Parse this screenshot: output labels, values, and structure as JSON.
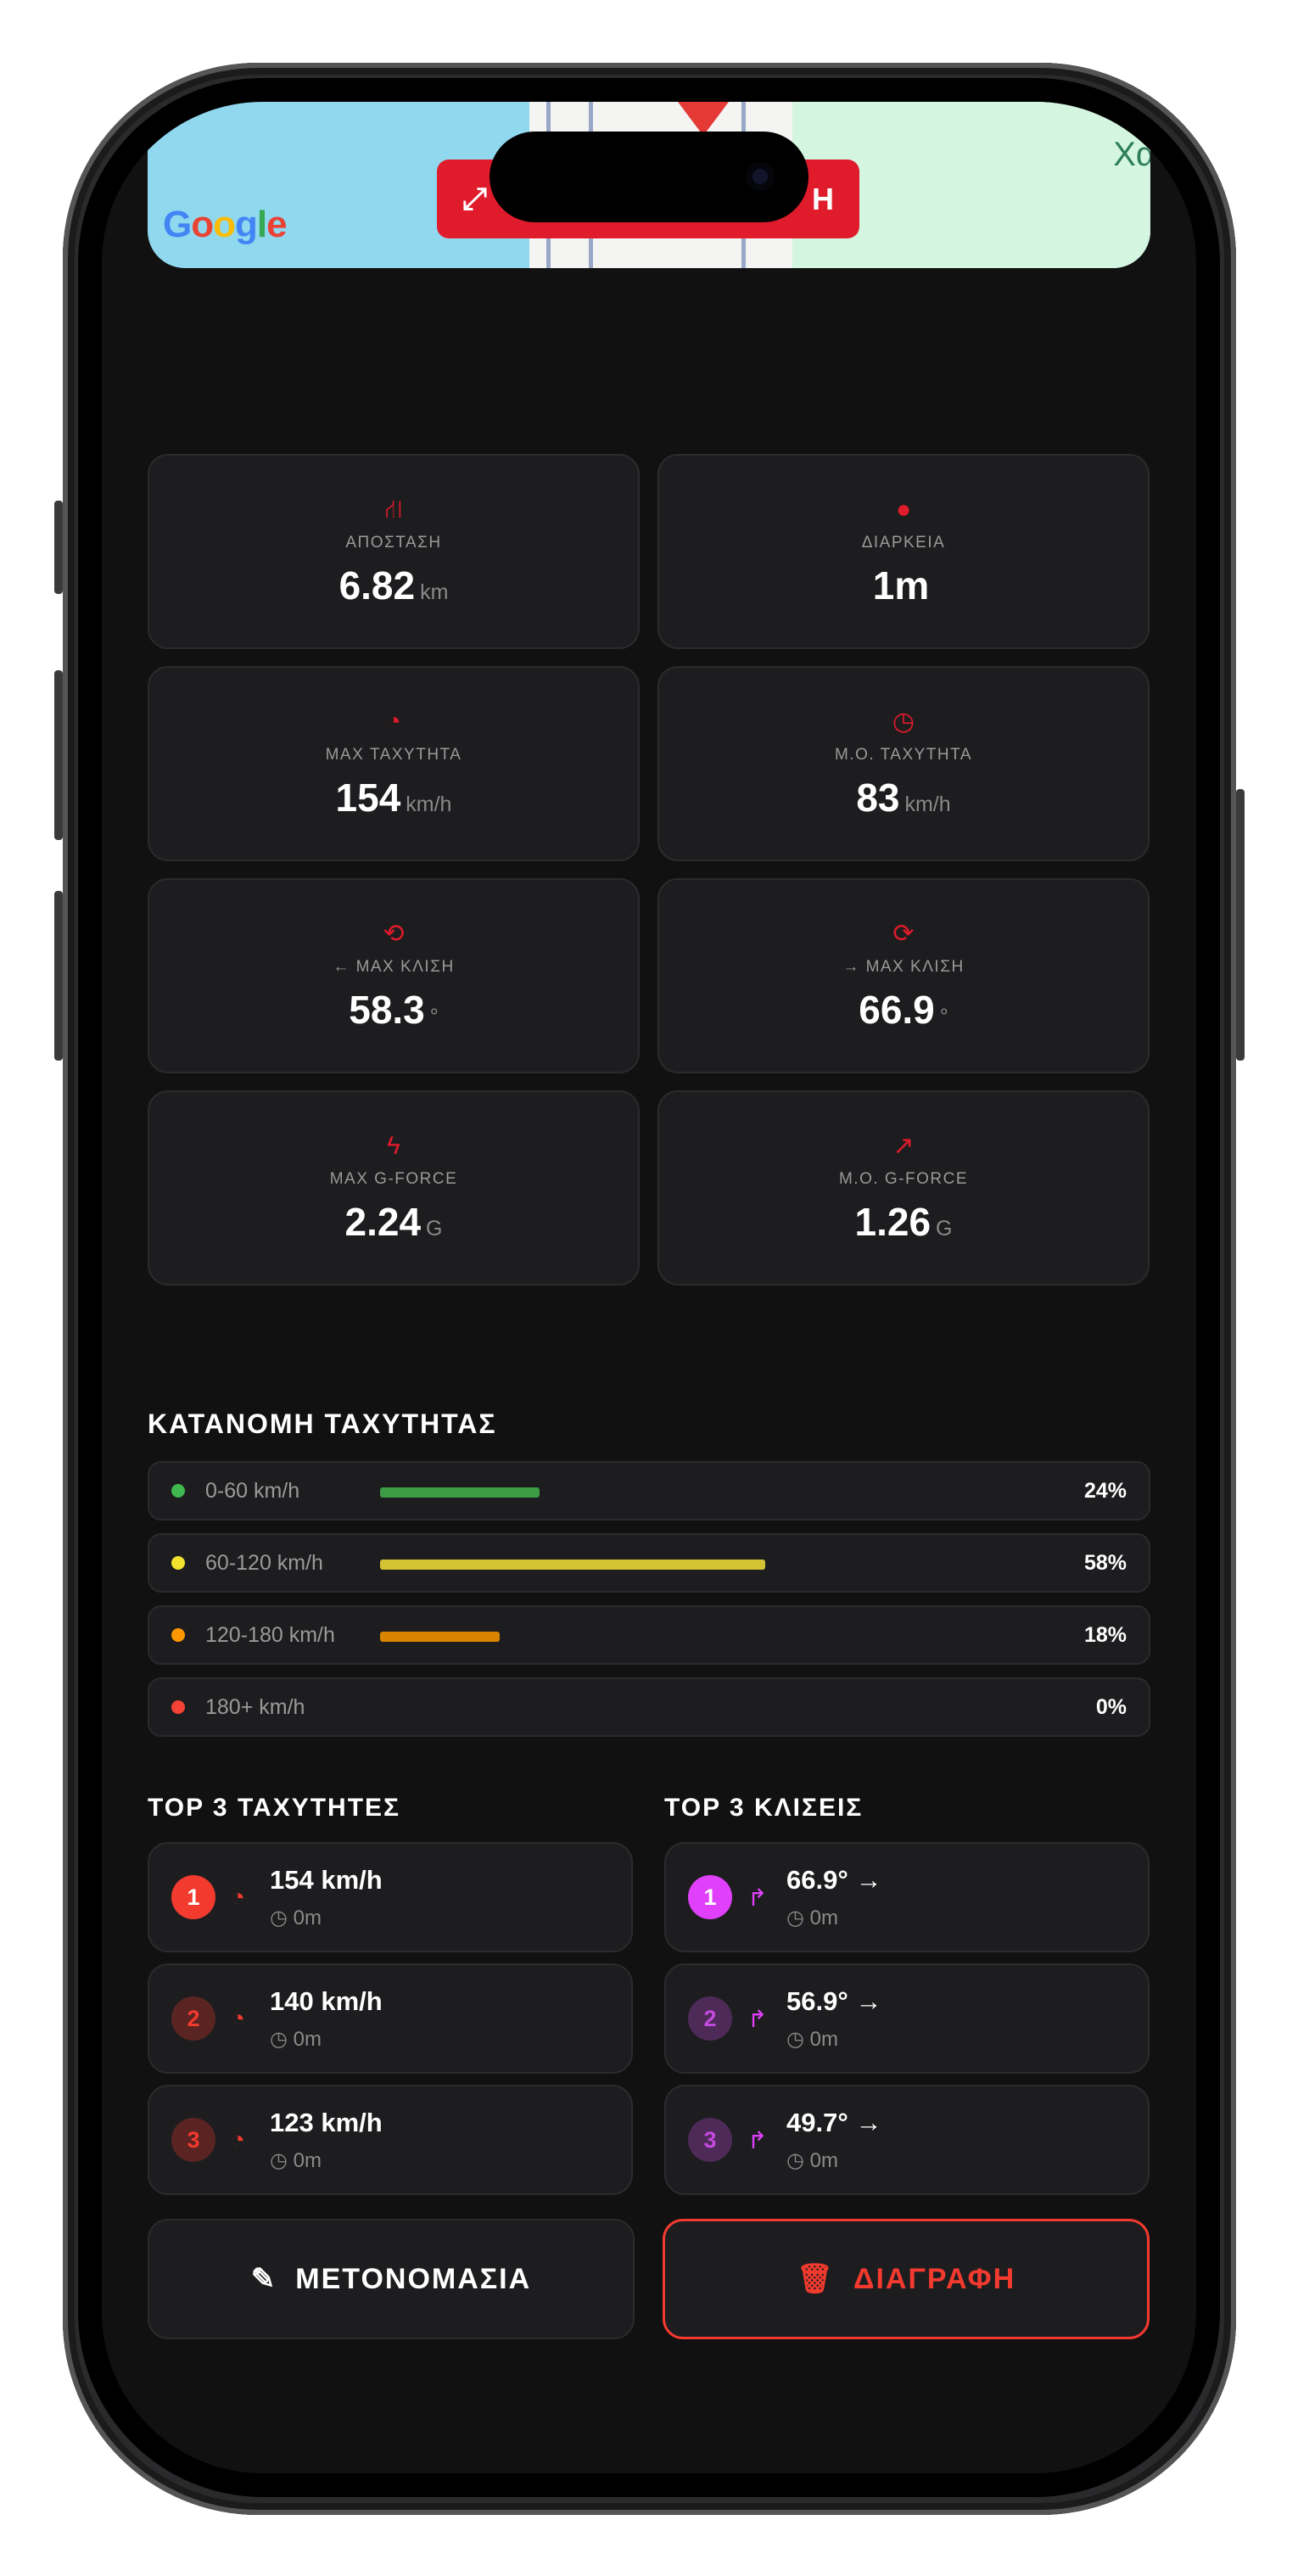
{
  "map": {
    "logo": "Google",
    "edge_label": "Χα",
    "button_label": "Η",
    "button_icon": "expand-icon",
    "accent": "#e01b2b"
  },
  "stats": [
    {
      "icon": "route-icon",
      "glyph": "⛙",
      "label": "ΑΠΟΣΤΑΣΗ",
      "value": "6.82",
      "unit": "km"
    },
    {
      "icon": "clock-icon",
      "glyph": "●",
      "label": "ΔΙΑΡΚΕΙΑ",
      "value": "1m",
      "unit": ""
    },
    {
      "icon": "speedometer-icon",
      "glyph": "◔",
      "label": "MAX ΤΑΧΥΤΗΤΑ",
      "value": "154",
      "unit": "km/h"
    },
    {
      "icon": "avg-speed-icon",
      "glyph": "◷",
      "label": "Μ.Ο. ΤΑΧΥΤΗΤΑ",
      "value": "83",
      "unit": "km/h"
    },
    {
      "icon": "rotate-left-icon",
      "glyph": "⟲",
      "label": "← MAX ΚΛΙΣΗ",
      "value": "58.3",
      "unit": "°"
    },
    {
      "icon": "rotate-right-icon",
      "glyph": "⟳",
      "label": "→ MAX ΚΛΙΣΗ",
      "value": "66.9",
      "unit": "°"
    },
    {
      "icon": "bolt-icon",
      "glyph": "ϟ",
      "label": "MAX G-FORCE",
      "value": "2.24",
      "unit": "G"
    },
    {
      "icon": "trend-icon",
      "glyph": "↗",
      "label": "Μ.Ο. G-FORCE",
      "value": "1.26",
      "unit": "G"
    }
  ],
  "distribution": {
    "title": "ΚΑΤΑΝΟΜΗ ΤΑΧΥΤΗΤΑΣ",
    "rows": [
      {
        "label": "0-60 km/h",
        "percent": 24,
        "percent_label": "24%",
        "color": "#3d9a45",
        "dot": "#3fb950"
      },
      {
        "label": "60-120 km/h",
        "percent": 58,
        "percent_label": "58%",
        "color": "#d4c235",
        "dot": "#f2e22e"
      },
      {
        "label": "120-180 km/h",
        "percent": 18,
        "percent_label": "18%",
        "color": "#d88400",
        "dot": "#ff9800"
      },
      {
        "label": "180+ km/h",
        "percent": 0,
        "percent_label": "0%",
        "color": "#e53935",
        "dot": "#f44336"
      }
    ]
  },
  "top_speeds": {
    "title": "TOP 3 ΤΑΧΥΤΗΤΕΣ",
    "items": [
      {
        "rank": "1",
        "value": "154 km/h",
        "time": "0m"
      },
      {
        "rank": "2",
        "value": "140 km/h",
        "time": "0m"
      },
      {
        "rank": "3",
        "value": "123 km/h",
        "time": "0m"
      }
    ]
  },
  "top_leans": {
    "title": "TOP 3 ΚΛΙΣΕΙΣ",
    "items": [
      {
        "rank": "1",
        "value": "66.9° →",
        "time": "0m"
      },
      {
        "rank": "2",
        "value": "56.9° →",
        "time": "0m"
      },
      {
        "rank": "3",
        "value": "49.7° →",
        "time": "0m"
      }
    ]
  },
  "actions": {
    "rename": "ΜΕΤΟΝΟΜΑΣΙΑ",
    "delete": "ΔΙΑΓΡΑΦΗ",
    "delete_color": "#f23a2f"
  }
}
